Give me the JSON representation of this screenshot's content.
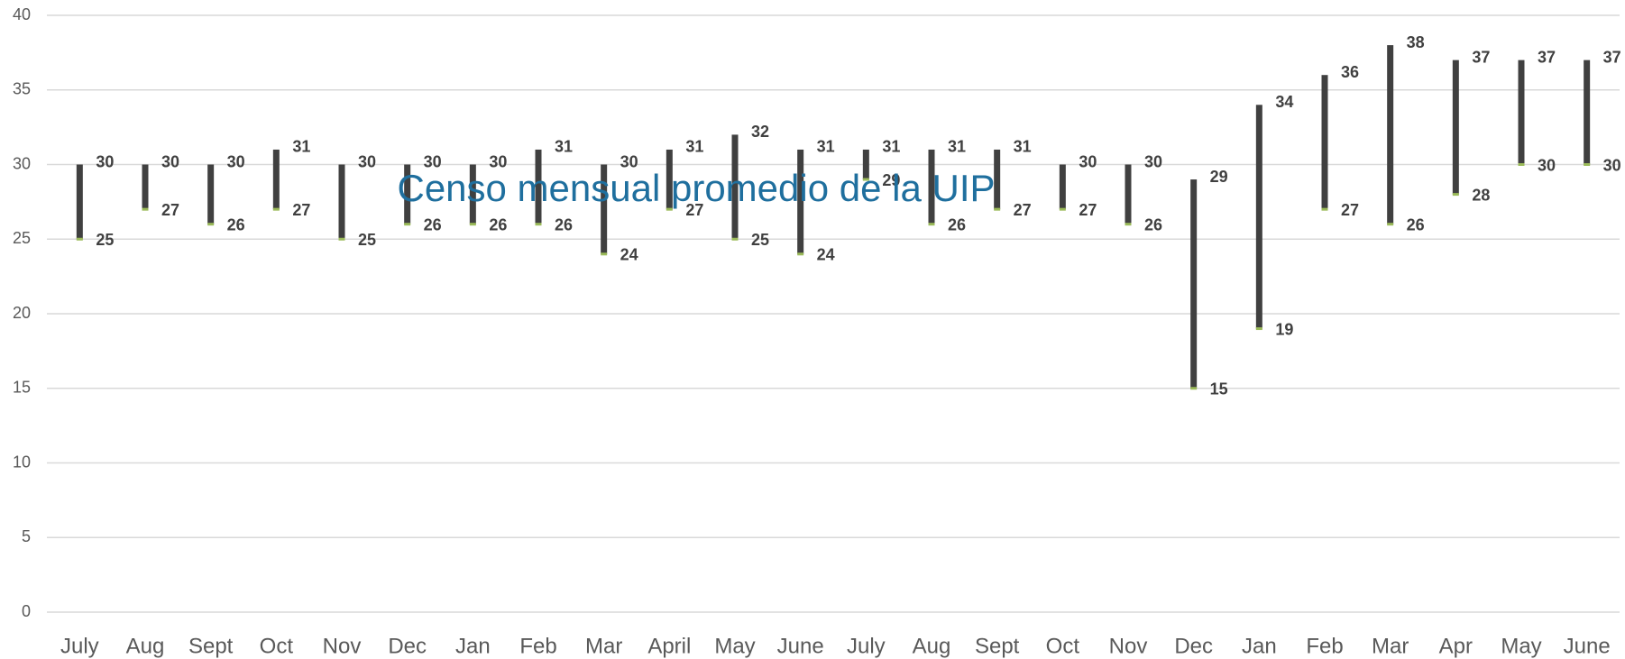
{
  "chart_data": {
    "type": "range",
    "title": "Censo mensual promedio de la UIP",
    "categories": [
      "July",
      "Aug",
      "Sept",
      "Oct",
      "Nov",
      "Dec",
      "Jan",
      "Feb",
      "Mar",
      "April",
      "May",
      "June",
      "July",
      "Aug",
      "Sept",
      "Oct",
      "Nov",
      "Dec",
      "Jan",
      "Feb",
      "Mar",
      "Apr",
      "May",
      "June"
    ],
    "series": [
      {
        "color": "#404040",
        "values": [
          30,
          30,
          30,
          31,
          30,
          30,
          30,
          31,
          30,
          31,
          32,
          31,
          31,
          31,
          31,
          30,
          30,
          29,
          34,
          36,
          38,
          37,
          37,
          37
        ]
      },
      {
        "color": "#9bbb59",
        "values": [
          25,
          27,
          26,
          27,
          25,
          26,
          26,
          26,
          24,
          27,
          25,
          24,
          29,
          26,
          27,
          27,
          26,
          15,
          19,
          27,
          26,
          28,
          30,
          30
        ]
      }
    ],
    "ylim": [
      0,
      40
    ],
    "yticks": [
      0,
      5,
      10,
      15,
      20,
      25,
      30,
      35,
      40
    ],
    "grid": true
  }
}
